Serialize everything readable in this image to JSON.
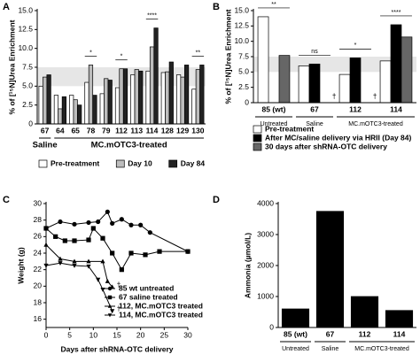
{
  "chart_data": [
    {
      "type": "bar",
      "panel_label": "A",
      "y_label": "% of [¹⁵N]Urea Enrichment",
      "categories": [
        "67",
        "64",
        "65",
        "78",
        "79",
        "112",
        "113",
        "114",
        "128",
        "129",
        "130"
      ],
      "series": [
        {
          "name": "Pre-treatment",
          "color": "#ffffff",
          "values": [
            5.0,
            3.8,
            3.8,
            5.5,
            4.0,
            4.8,
            6.5,
            7.0,
            6.8,
            6.5,
            4.6
          ]
        },
        {
          "name": "Day 10",
          "color": "#bdbdbd",
          "values": [
            6.2,
            2.0,
            3.2,
            7.8,
            6.0,
            7.3,
            7.2,
            10.2,
            6.9,
            6.2,
            7.2
          ]
        },
        {
          "name": "Day 84",
          "color": "#222222",
          "values": [
            6.5,
            3.6,
            2.5,
            3.8,
            5.8,
            7.3,
            7.0,
            12.7,
            8.2,
            7.8,
            7.8
          ]
        }
      ],
      "ylim": [
        0,
        15
      ],
      "yticks": [
        0,
        2.5,
        {
          "value": 5,
          "label": "5.0"
        },
        7.5,
        {
          "value": 10,
          "label": "10.0"
        },
        12.5,
        {
          "value": 15,
          "label": "15.0"
        }
      ],
      "reference_band": [
        5,
        7.5
      ],
      "groups": [
        {
          "label": "Saline",
          "categories": [
            "67"
          ]
        },
        {
          "label": "MC.mOTC3-treated",
          "categories": [
            "64",
            "65",
            "78",
            "79",
            "112",
            "113",
            "114",
            "128",
            "129",
            "130"
          ]
        }
      ],
      "annotations": [
        {
          "category": "78",
          "text": "*"
        },
        {
          "category": "112",
          "text": "*"
        },
        {
          "category": "114",
          "text": "****"
        },
        {
          "category": "130",
          "text": "**"
        }
      ],
      "legend": "bottom"
    },
    {
      "type": "bar",
      "panel_label": "B",
      "y_label": "% of [¹⁵N]Urea Enrichment",
      "categories": [
        "85 (wt)",
        "67",
        "112",
        "114"
      ],
      "series": [
        {
          "name": "Pre-treatment",
          "color": "#ffffff",
          "values": [
            14.0,
            6.0,
            4.6,
            6.8
          ]
        },
        {
          "name": "After MC/saline delivery via HRII (Day 84)",
          "color": "#000000",
          "values": [
            null,
            6.3,
            7.3,
            12.7
          ]
        },
        {
          "name": "30 days after shRNA-OTC delivery",
          "color": "#666666",
          "values": [
            7.7,
            null,
            null,
            10.7
          ]
        }
      ],
      "ylim": [
        0,
        15
      ],
      "yticks": [
        0,
        2.5,
        {
          "value": 5,
          "label": "5.0"
        },
        7.5,
        {
          "value": 10,
          "label": "10.0"
        },
        12.5,
        {
          "value": 15,
          "label": "15.0"
        }
      ],
      "reference_band": [
        5,
        7.5
      ],
      "groups": [
        {
          "label": "Untreated",
          "categories": [
            "85 (wt)"
          ]
        },
        {
          "label": "Saline",
          "categories": [
            "67"
          ]
        },
        {
          "label": "MC.mOTC3-treated",
          "categories": [
            "112",
            "114"
          ]
        }
      ],
      "annotations": [
        {
          "category": "85 (wt)",
          "text": "**"
        },
        {
          "category": "67",
          "text": "ns"
        },
        {
          "category": "112",
          "text": "*"
        },
        {
          "category": "114",
          "text": "****"
        }
      ],
      "missing_marks": [
        {
          "category": "67",
          "text": "†"
        },
        {
          "category": "112",
          "text": "†"
        }
      ],
      "legend": "bottom"
    },
    {
      "type": "line",
      "panel_label": "C",
      "x_label": "Days after shRNA-OTC delivery",
      "y_label": "Weight (g)",
      "xlim": [
        0,
        30
      ],
      "xticks": [
        0,
        5,
        10,
        15,
        20,
        25,
        30
      ],
      "ylim": [
        15,
        30
      ],
      "yticks": [
        16,
        18,
        20,
        22,
        24,
        26,
        28,
        30
      ],
      "series": [
        {
          "name": "85 wt untreated",
          "color": "#000000",
          "marker": "circle",
          "x": [
            0,
            3,
            6,
            9,
            11,
            13,
            14,
            16,
            18,
            20,
            22,
            30
          ],
          "values": [
            27.0,
            27.8,
            27.5,
            27.7,
            27.8,
            29.0,
            27.6,
            28.1,
            27.4,
            27.4,
            26.5,
            24.2
          ]
        },
        {
          "name": "67 saline treated",
          "color": "#000000",
          "marker": "square",
          "x": [
            0,
            2,
            4,
            6,
            9,
            10,
            12,
            14,
            16,
            18,
            21,
            24,
            30
          ],
          "values": [
            27.0,
            26.0,
            25.5,
            25.5,
            25.6,
            27.0,
            25.8,
            24.0,
            22.0,
            24.0,
            23.8,
            24.2,
            24.2
          ]
        },
        {
          "name": "112, MC.mOTC3 treated",
          "color": "#000000",
          "marker": "triangle",
          "x": [
            0,
            3,
            6,
            9,
            12,
            13,
            14
          ],
          "values": [
            25.0,
            23.3,
            23.0,
            23.0,
            23.0,
            20.6,
            19.9
          ],
          "end_label": "†"
        },
        {
          "name": "114, MC.mOTC3 treated",
          "color": "#000000",
          "marker": "triangle-down",
          "x": [
            0,
            3,
            6,
            9,
            11,
            12,
            14
          ],
          "values": [
            22.5,
            22.8,
            22.5,
            22.4,
            20.8,
            19.6,
            17.0
          ],
          "end_label": "†"
        }
      ],
      "legend": "center-right"
    },
    {
      "type": "bar",
      "panel_label": "D",
      "y_label": "Ammonia (µmol/L)",
      "categories": [
        "85 (wt)",
        "67",
        "112",
        "114"
      ],
      "values": [
        600,
        3750,
        1000,
        550
      ],
      "color": "#000000",
      "ylim": [
        0,
        4000
      ],
      "yticks": [
        0,
        1000,
        2000,
        3000,
        4000
      ],
      "groups": [
        {
          "label": "Untreated",
          "categories": [
            "85 (wt)"
          ]
        },
        {
          "label": "Saline",
          "categories": [
            "67"
          ]
        },
        {
          "label": "MC.mOTC3-treated",
          "categories": [
            "112",
            "114"
          ]
        }
      ]
    }
  ]
}
